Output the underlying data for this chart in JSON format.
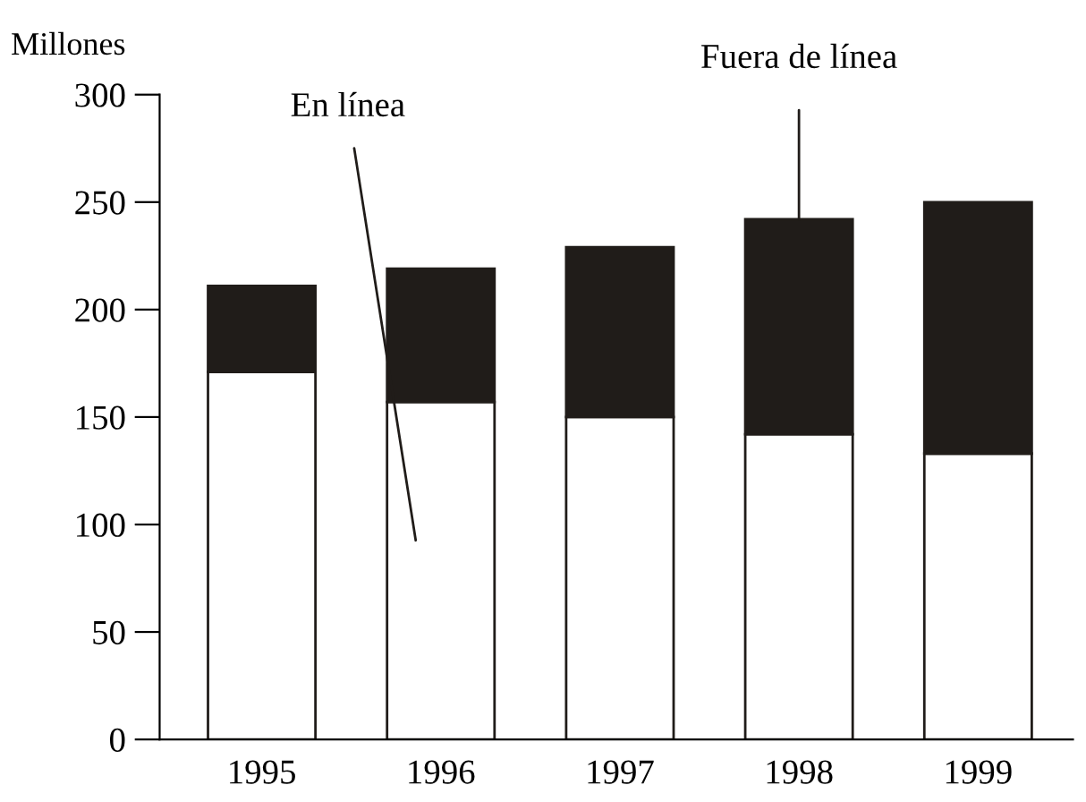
{
  "chart_data": {
    "type": "bar",
    "stacked": true,
    "ylabel": "Millones",
    "categories": [
      "1995",
      "1996",
      "1997",
      "1998",
      "1999"
    ],
    "series": [
      {
        "name": "En línea",
        "color": "#ffffff",
        "values": [
          171,
          157,
          150,
          142,
          133
        ]
      },
      {
        "name": "Fuera de línea",
        "color": "#201c19",
        "values": [
          40,
          62,
          79,
          100,
          117
        ]
      }
    ],
    "ylim": [
      0,
      300
    ],
    "yticks": [
      0,
      50,
      100,
      150,
      200,
      250,
      300
    ],
    "grid": false,
    "legend": false
  }
}
